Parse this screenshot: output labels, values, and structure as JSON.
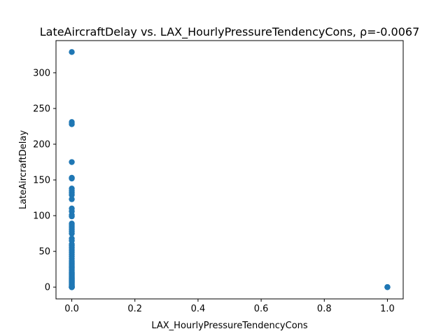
{
  "chart_data": {
    "type": "scatter",
    "title": "LateAircraftDelay vs. LAX_HourlyPressureTendencyCons, ρ=-0.0067",
    "xlabel": "LAX_HourlyPressureTendencyCons",
    "ylabel": "LateAircraftDelay",
    "xlim": [
      -0.05,
      1.05
    ],
    "ylim": [
      -16.5,
      345
    ],
    "xticks": [
      0.0,
      0.2,
      0.4,
      0.6,
      0.8,
      1.0
    ],
    "xtick_labels": [
      "0.0",
      "0.2",
      "0.4",
      "0.6",
      "0.8",
      "1.0"
    ],
    "yticks": [
      0,
      50,
      100,
      150,
      200,
      250,
      300
    ],
    "ytick_labels": [
      "0",
      "50",
      "100",
      "150",
      "200",
      "250",
      "300"
    ],
    "grid": false,
    "marker_color": "#1f77b4",
    "series": [
      {
        "x": [
          0,
          0,
          0,
          0,
          0,
          0,
          0,
          0,
          0,
          0,
          0,
          0,
          0,
          0,
          0,
          0,
          0,
          0,
          0,
          0,
          0,
          0,
          0,
          0,
          0,
          0,
          0,
          0,
          0,
          0,
          0,
          0,
          0,
          0,
          0,
          0,
          0,
          0,
          0,
          0,
          0,
          0,
          0,
          0,
          0,
          0,
          0,
          0,
          0,
          0,
          0,
          0,
          0,
          0,
          0,
          0,
          0,
          0,
          0,
          0,
          0,
          0,
          0,
          0,
          0,
          0,
          0,
          0,
          0,
          0,
          1,
          1,
          1
        ],
        "y": [
          329,
          231,
          228,
          175,
          153,
          152,
          138,
          135,
          132,
          129,
          123,
          110,
          106,
          101,
          99,
          89,
          87,
          84,
          81,
          78,
          75,
          68,
          65,
          60,
          58,
          55,
          52,
          49,
          46,
          43,
          40,
          37,
          35,
          33,
          31,
          29,
          27,
          25,
          23,
          21,
          20,
          19,
          18,
          17,
          16,
          15,
          14,
          13,
          12,
          11,
          10,
          9,
          8,
          7,
          6,
          5,
          4,
          3,
          2,
          1,
          0,
          0,
          0,
          0,
          0,
          0,
          0,
          0,
          0,
          0,
          0,
          0,
          0
        ]
      }
    ]
  }
}
